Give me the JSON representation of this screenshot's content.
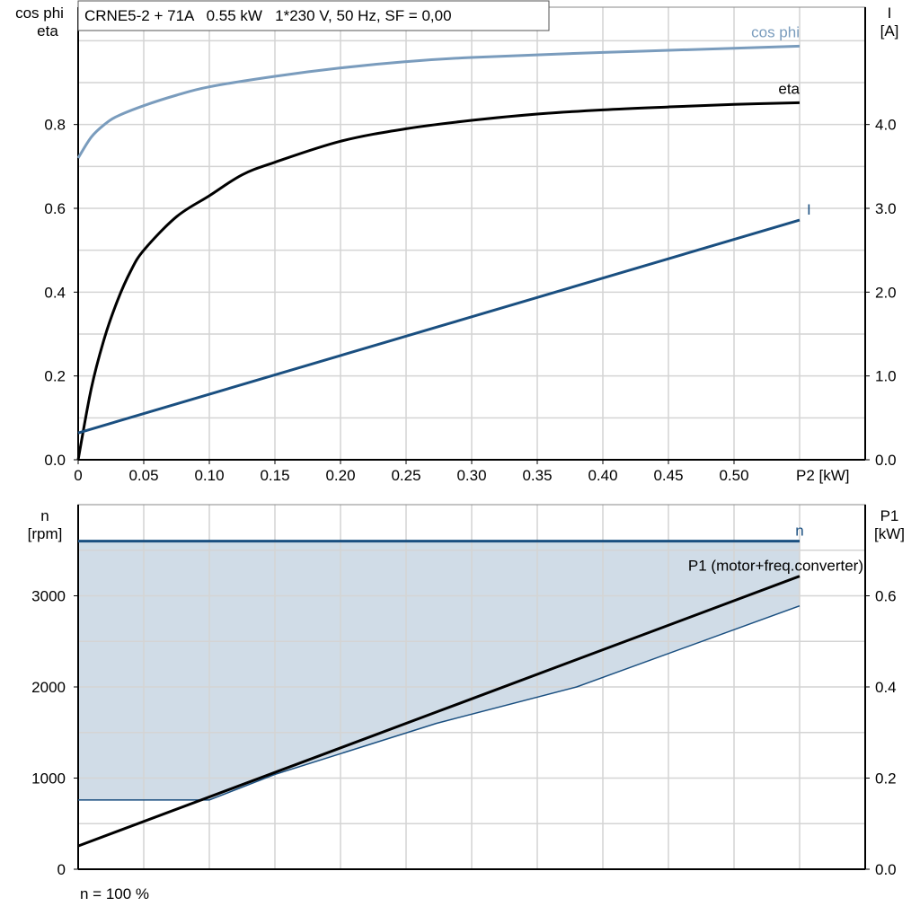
{
  "chart_data": [
    {
      "type": "line",
      "title": "CRNE5-2 + 71A   0.55 kW   1*230 V, 50 Hz, SF = 0,00",
      "xlabel": "P2 [kW]",
      "ylabel": [
        "cos phi",
        "eta"
      ],
      "ylabel_right": [
        "I",
        "[A]"
      ],
      "xlim": [
        0,
        0.6
      ],
      "ylim": [
        0,
        1.08
      ],
      "ylim_right": [
        0,
        5.4
      ],
      "grid": true,
      "x_ticks": [
        "0",
        "0.05",
        "0.10",
        "0.15",
        "0.20",
        "0.25",
        "0.30",
        "0.35",
        "0.40",
        "0.45",
        "0.50"
      ],
      "y_ticks": [
        "0.0",
        "0.2",
        "0.4",
        "0.6",
        "0.8"
      ],
      "y_ticks_right": [
        "0.0",
        "1.0",
        "2.0",
        "3.0",
        "4.0"
      ],
      "series": [
        {
          "name": "cos phi",
          "axis": "left",
          "color": "#7a9cbd",
          "x": [
            0,
            0.01,
            0.02,
            0.03,
            0.05,
            0.075,
            0.1,
            0.15,
            0.2,
            0.25,
            0.3,
            0.4,
            0.5,
            0.55
          ],
          "y": [
            0.72,
            0.77,
            0.8,
            0.82,
            0.845,
            0.87,
            0.89,
            0.915,
            0.935,
            0.95,
            0.96,
            0.972,
            0.982,
            0.987
          ]
        },
        {
          "name": "eta",
          "axis": "left",
          "color": "#000000",
          "x": [
            0,
            0.01,
            0.02,
            0.03,
            0.04,
            0.05,
            0.075,
            0.1,
            0.125,
            0.15,
            0.2,
            0.25,
            0.3,
            0.35,
            0.4,
            0.45,
            0.5,
            0.55
          ],
          "y": [
            0,
            0.17,
            0.29,
            0.38,
            0.45,
            0.5,
            0.58,
            0.63,
            0.68,
            0.71,
            0.76,
            0.79,
            0.81,
            0.825,
            0.835,
            0.842,
            0.848,
            0.852
          ]
        },
        {
          "name": "I",
          "axis": "right",
          "color": "#1a4f80",
          "x": [
            0,
            0.55
          ],
          "y": [
            0.32,
            2.86
          ]
        }
      ]
    },
    {
      "type": "line",
      "xlabel": "",
      "ylabel": [
        "n",
        "[rpm]"
      ],
      "ylabel_right": [
        "P1",
        "[kW]"
      ],
      "xlim": [
        0,
        0.6
      ],
      "ylim": [
        0,
        4000
      ],
      "ylim_right": [
        0,
        0.8
      ],
      "grid": true,
      "y_ticks": [
        "0",
        "1000",
        "2000",
        "3000"
      ],
      "y_ticks_right": [
        "0.0",
        "0.2",
        "0.4",
        "0.6"
      ],
      "footnote": "n = 100 %",
      "band": {
        "color": "#d0dce7",
        "lower_x": [
          0,
          0.1,
          0.15,
          0.273,
          0.38,
          0.55
        ],
        "lower_y": [
          760,
          760,
          1040,
          1600,
          2000,
          2890
        ]
      },
      "series": [
        {
          "name": "n",
          "axis": "left",
          "color": "#1a4f80",
          "x": [
            0,
            0.55
          ],
          "y": [
            3600,
            3600
          ]
        },
        {
          "name": "P1 (motor+freq.converter)",
          "axis": "right",
          "color": "#000000",
          "x": [
            0,
            0.55
          ],
          "y": [
            0.051,
            0.643
          ]
        }
      ]
    }
  ]
}
